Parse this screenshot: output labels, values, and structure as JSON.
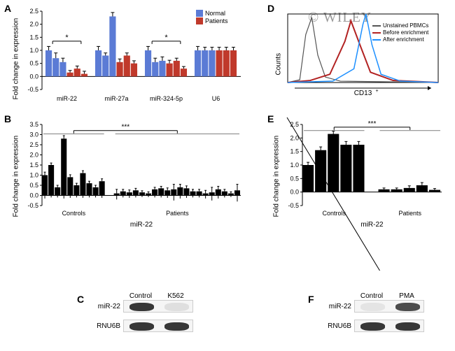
{
  "colors": {
    "normal": "#5b7bd5",
    "patients": "#c0392b",
    "black": "#000000",
    "unstained": "#555555",
    "before": "#b22222",
    "after": "#1e90ff",
    "watermark": "#888888",
    "axis": "#000000"
  },
  "panelA": {
    "label": "A",
    "y_label": "Fold change in expression",
    "ylim": [
      -0.5,
      2.5
    ],
    "ytick_step": 0.5,
    "legend": {
      "normal": "Normal",
      "patients": "Patients"
    },
    "groups": [
      "miR-22",
      "miR-27a",
      "miR-324-5p",
      "U6"
    ],
    "normals_per_group": 3,
    "patients_per_group": 3,
    "data": {
      "miR-22": {
        "normal": [
          1.0,
          0.7,
          0.55
        ],
        "patients": [
          0.15,
          0.3,
          0.1
        ],
        "normal_err": [
          0.15,
          0.2,
          0.15
        ],
        "patients_err": [
          0.08,
          0.1,
          0.1
        ],
        "sig": "*"
      },
      "miR-27a": {
        "normal": [
          1.0,
          0.8,
          2.3
        ],
        "patients": [
          0.55,
          0.8,
          0.5
        ],
        "normal_err": [
          0.15,
          0.1,
          0.15
        ],
        "patients_err": [
          0.12,
          0.1,
          0.1
        ],
        "sig": null
      },
      "miR-324-5p": {
        "normal": [
          1.0,
          0.55,
          0.6
        ],
        "patients": [
          0.5,
          0.6,
          0.3
        ],
        "normal_err": [
          0.15,
          0.15,
          0.15
        ],
        "patients_err": [
          0.12,
          0.1,
          0.08
        ],
        "sig": "*"
      },
      "U6": {
        "normal": [
          1.0,
          1.0,
          1.0
        ],
        "patients": [
          1.0,
          1.0,
          1.0
        ],
        "normal_err": [
          0.15,
          0.12,
          0.12
        ],
        "patients_err": [
          0.12,
          0.12,
          0.12
        ],
        "sig": null
      }
    }
  },
  "panelB": {
    "label": "B",
    "y_label": "Fold change in expression",
    "x_label": "miR-22",
    "ylim": [
      -0.5,
      3.5
    ],
    "ytick_step": 0.5,
    "groups": {
      "controls": "Controls",
      "patients": "Patients"
    },
    "controls": [
      1.0,
      1.5,
      0.4,
      2.8,
      0.9,
      0.5,
      1.1,
      0.6,
      0.4,
      0.7
    ],
    "controls_err": [
      0.15,
      0.1,
      0.1,
      0.15,
      0.12,
      0.1,
      0.12,
      0.1,
      0.1,
      0.12
    ],
    "patients": [
      0.1,
      0.2,
      0.15,
      0.25,
      0.15,
      0.1,
      0.3,
      0.35,
      0.25,
      0.3,
      0.4,
      0.35,
      0.2,
      0.2,
      0.1,
      0.15,
      0.3,
      0.2,
      0.1,
      0.25
    ],
    "patients_err": [
      0.2,
      0.1,
      0.12,
      0.1,
      0.08,
      0.08,
      0.1,
      0.1,
      0.12,
      0.25,
      0.15,
      0.12,
      0.1,
      0.1,
      0.15,
      0.25,
      0.15,
      0.1,
      0.08,
      0.3
    ],
    "sig": "***"
  },
  "panelC": {
    "label": "C",
    "col_labels": [
      "Control",
      "K562"
    ],
    "rows": [
      "miR-22",
      "RNU6B"
    ],
    "bands": {
      "miR-22": [
        0.9,
        0.1
      ],
      "RNU6B": [
        0.9,
        0.9
      ]
    }
  },
  "panelD": {
    "label": "D",
    "x_label": "CD13",
    "y_label": "Counts",
    "legend": {
      "unstained": "Unstained PBMCs",
      "before": "Before enrichment",
      "after": "After enrichment"
    },
    "curves": {
      "unstained": [
        [
          0,
          0
        ],
        [
          8,
          4
        ],
        [
          12,
          70
        ],
        [
          16,
          95
        ],
        [
          20,
          40
        ],
        [
          25,
          8
        ],
        [
          35,
          2
        ],
        [
          100,
          0
        ]
      ],
      "before": [
        [
          0,
          0
        ],
        [
          15,
          3
        ],
        [
          28,
          12
        ],
        [
          38,
          60
        ],
        [
          42,
          90
        ],
        [
          48,
          55
        ],
        [
          55,
          15
        ],
        [
          70,
          3
        ],
        [
          100,
          0
        ]
      ],
      "after": [
        [
          0,
          0
        ],
        [
          30,
          2
        ],
        [
          44,
          20
        ],
        [
          50,
          85
        ],
        [
          52,
          100
        ],
        [
          56,
          55
        ],
        [
          62,
          12
        ],
        [
          75,
          2
        ],
        [
          100,
          0
        ]
      ]
    }
  },
  "panelE": {
    "label": "E",
    "y_label": "Fold change in expression",
    "x_label": "miR-22",
    "ylim": [
      -0.5,
      2.5
    ],
    "ytick_step": 0.5,
    "groups": {
      "controls": "Controls",
      "patients": "Patients"
    },
    "controls": [
      1.0,
      1.55,
      2.15,
      1.75,
      1.75
    ],
    "controls_err": [
      0.1,
      0.12,
      0.1,
      0.12,
      0.12
    ],
    "patients": [
      0.1,
      0.1,
      0.15,
      0.25,
      0.08
    ],
    "patients_err": [
      0.05,
      0.05,
      0.08,
      0.1,
      0.05
    ],
    "sig": "***"
  },
  "panelF": {
    "label": "F",
    "col_labels": [
      "Control",
      "PMA"
    ],
    "rows": [
      "miR-22",
      "RNU6B"
    ],
    "bands": {
      "miR-22": [
        0.05,
        0.8
      ],
      "RNU6B": [
        0.9,
        0.9
      ]
    }
  },
  "watermark": "© WILEY",
  "style": {
    "axis_fontsize": 10,
    "label_fontsize": 10,
    "bar_gap": 1
  }
}
